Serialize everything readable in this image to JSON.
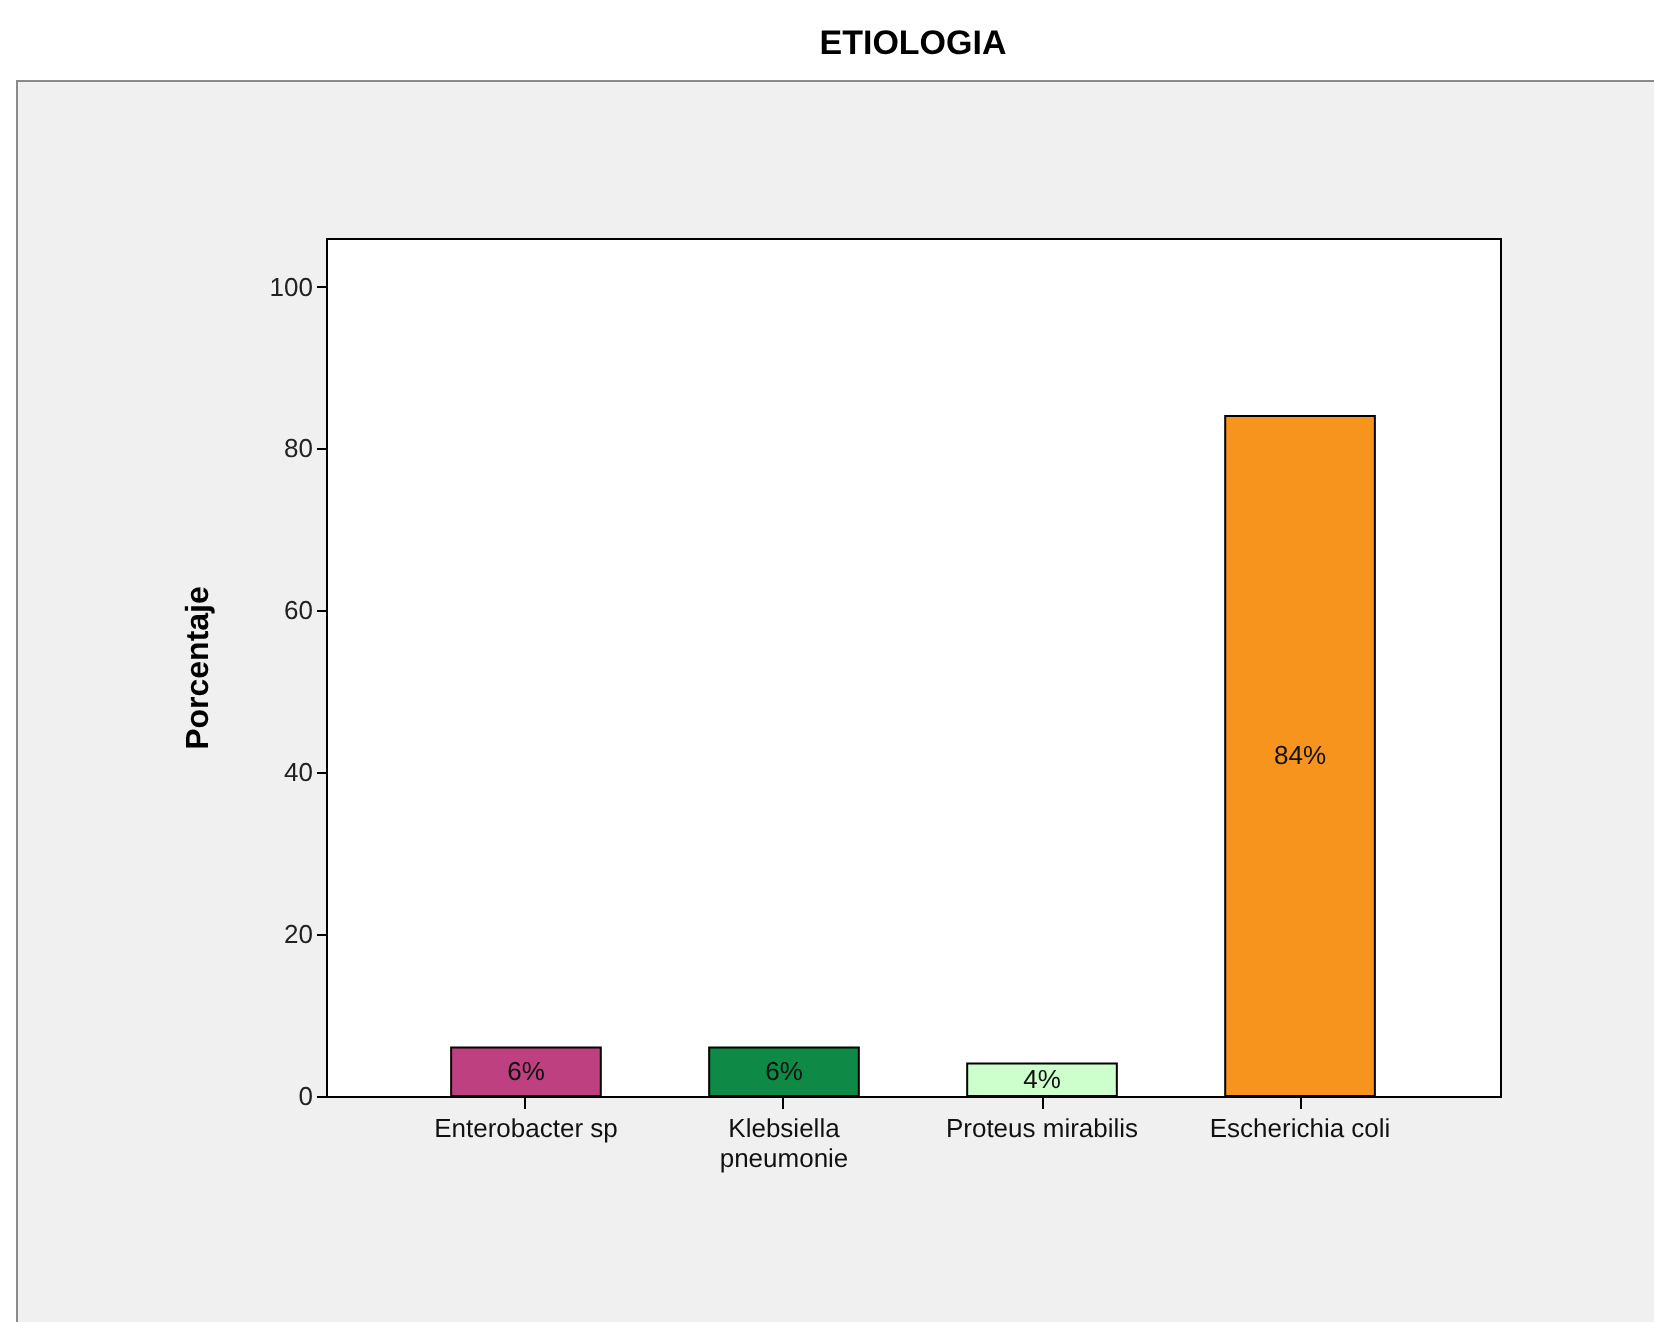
{
  "chart_data": {
    "type": "bar",
    "title": "ETIOLOGIA",
    "ylabel": "Porcentaje",
    "categories": [
      "Enterobacter sp",
      "Klebsiella pneumonie",
      "Proteus mirabilis",
      "Escherichia coli"
    ],
    "values": [
      6,
      6,
      4,
      84
    ],
    "colors": [
      "#bf4080",
      "#0e8a46",
      "#ccffcc",
      "#f7941d"
    ],
    "value_labels": [
      "6%",
      "6%",
      "4%",
      "84%"
    ],
    "ylim": [
      0,
      106
    ],
    "yticks": [
      0,
      20,
      40,
      60,
      80,
      100
    ]
  }
}
